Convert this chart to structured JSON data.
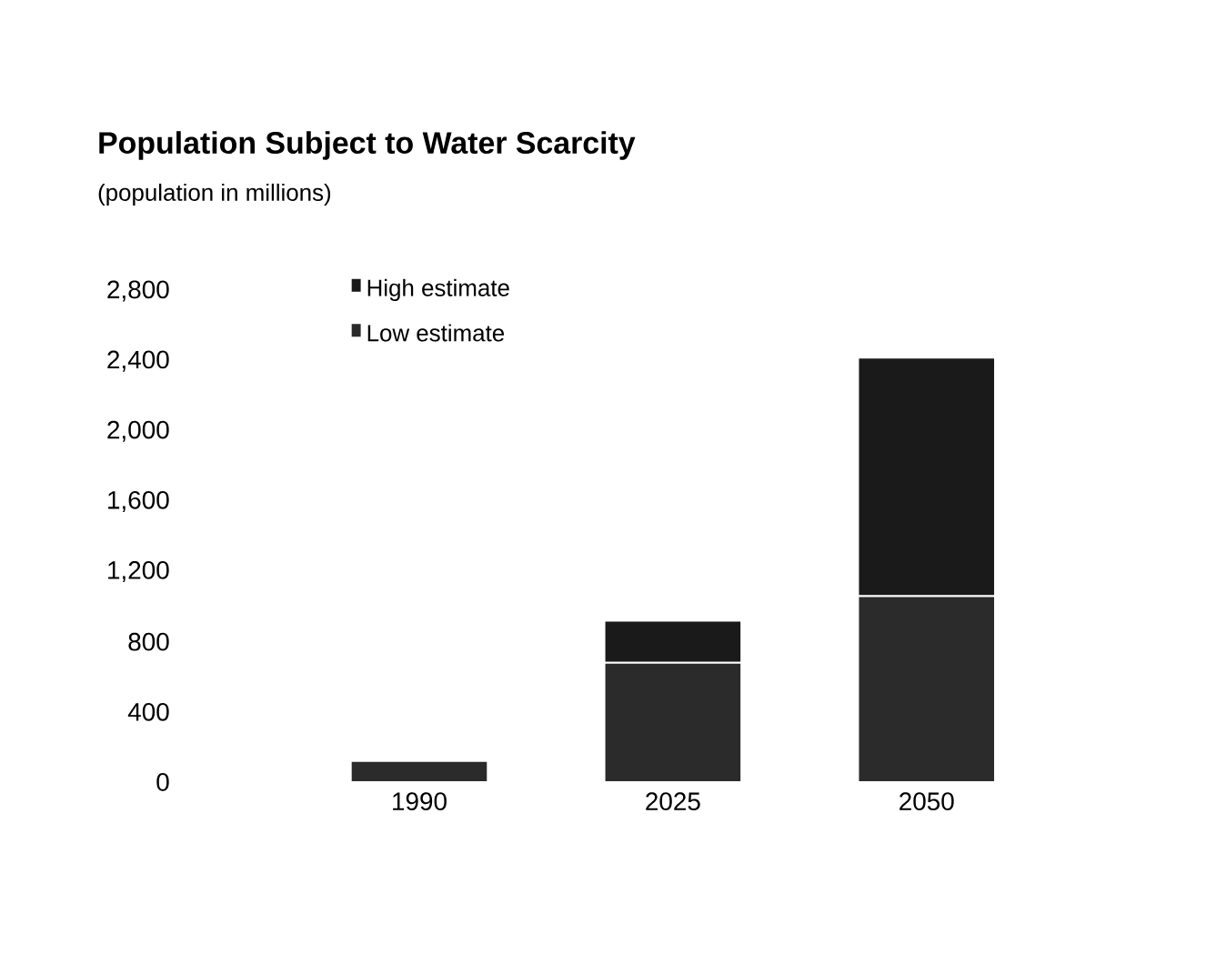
{
  "chart_data": {
    "type": "bar",
    "title": "Population Subject to Water Scarcity",
    "subtitle": "(population in millions)",
    "categories": [
      "1990",
      "2025",
      "2050"
    ],
    "stacked": true,
    "series": [
      {
        "name": "Low estimate",
        "color": "#2b2b2b",
        "values": [
          120,
          680,
          1060
        ]
      },
      {
        "name": "High estimate",
        "color": "#1a1a1a",
        "values": [
          0,
          240,
          1360
        ]
      }
    ],
    "ylim": [
      0,
      2800
    ],
    "yticks": [
      0,
      400,
      800,
      {
        "value": 1200,
        "label": "1,200"
      },
      {
        "value": 1600,
        "label": "1,600"
      },
      {
        "value": 2000,
        "label": "2,000"
      },
      {
        "value": 2400,
        "label": "2,400"
      },
      {
        "value": 2800,
        "label": "2,800"
      }
    ],
    "legend": "top left"
  }
}
